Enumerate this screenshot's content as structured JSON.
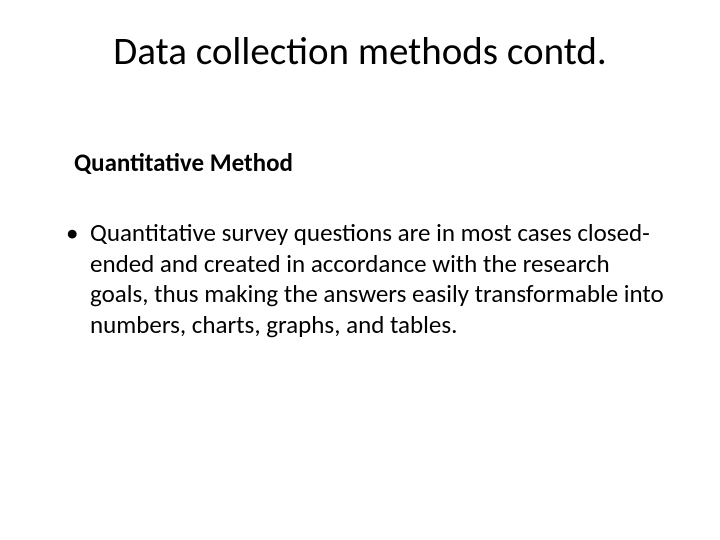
{
  "slide": {
    "title": "Data collection methods contd.",
    "subtitle": "Quantitative Method",
    "bullet_text": "Quantitative survey questions are in most cases closed-ended and created in accordance with the research goals, thus making the answers easily transformable into numbers, charts, graphs, and tables."
  },
  "style": {
    "background_color": "#ffffff",
    "text_color": "#000000",
    "title_fontsize": 39,
    "subtitle_fontsize": 25,
    "body_fontsize": 25,
    "font_family": "Calibri"
  }
}
